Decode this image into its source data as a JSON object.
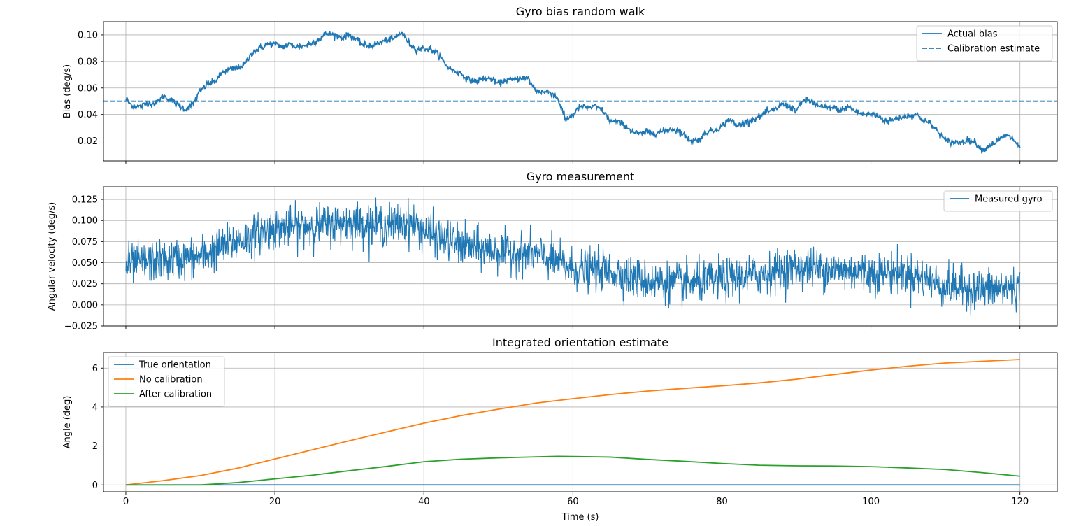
{
  "chart_data": [
    {
      "type": "line",
      "title": "Gyro bias random walk",
      "xlabel": "",
      "ylabel": "Bias (deg/s)",
      "xlim": [
        -3,
        125
      ],
      "ylim": [
        0.005,
        0.11
      ],
      "xticks": [
        0,
        20,
        40,
        60,
        80,
        100,
        120
      ],
      "yticks": [
        0.02,
        0.04,
        0.06,
        0.08,
        0.1
      ],
      "ytick_labels": [
        "0.02",
        "0.04",
        "0.06",
        "0.08",
        "0.10"
      ],
      "show_xtick_labels": false,
      "grid": true,
      "legend": "top-right",
      "series": [
        {
          "name": "Actual bias",
          "color": "#1f77b4",
          "style": "solid",
          "noise": 0.0012,
          "points": [
            [
              0,
              0.051
            ],
            [
              1,
              0.046
            ],
            [
              2,
              0.046
            ],
            [
              3,
              0.049
            ],
            [
              4,
              0.048
            ],
            [
              5,
              0.054
            ],
            [
              6,
              0.051
            ],
            [
              7,
              0.047
            ],
            [
              8,
              0.044
            ],
            [
              9,
              0.048
            ],
            [
              10,
              0.058
            ],
            [
              11,
              0.063
            ],
            [
              12,
              0.065
            ],
            [
              13,
              0.072
            ],
            [
              14,
              0.074
            ],
            [
              15,
              0.075
            ],
            [
              16,
              0.078
            ],
            [
              17,
              0.087
            ],
            [
              18,
              0.09
            ],
            [
              19,
              0.093
            ],
            [
              20,
              0.093
            ],
            [
              21,
              0.091
            ],
            [
              22,
              0.093
            ],
            [
              23,
              0.091
            ],
            [
              24,
              0.092
            ],
            [
              25,
              0.094
            ],
            [
              26,
              0.097
            ],
            [
              27,
              0.101
            ],
            [
              28,
              0.1
            ],
            [
              29,
              0.098
            ],
            [
              30,
              0.1
            ],
            [
              31,
              0.096
            ],
            [
              32,
              0.092
            ],
            [
              33,
              0.092
            ],
            [
              34,
              0.094
            ],
            [
              35,
              0.096
            ],
            [
              36,
              0.097
            ],
            [
              37,
              0.102
            ],
            [
              38,
              0.094
            ],
            [
              39,
              0.089
            ],
            [
              40,
              0.09
            ],
            [
              41,
              0.089
            ],
            [
              42,
              0.085
            ],
            [
              43,
              0.077
            ],
            [
              44,
              0.073
            ],
            [
              45,
              0.071
            ],
            [
              46,
              0.066
            ],
            [
              47,
              0.065
            ],
            [
              48,
              0.067
            ],
            [
              49,
              0.067
            ],
            [
              50,
              0.063
            ],
            [
              51,
              0.066
            ],
            [
              52,
              0.066
            ],
            [
              53,
              0.068
            ],
            [
              54,
              0.067
            ],
            [
              55,
              0.058
            ],
            [
              56,
              0.057
            ],
            [
              57,
              0.057
            ],
            [
              58,
              0.052
            ],
            [
              59,
              0.036
            ],
            [
              60,
              0.04
            ],
            [
              61,
              0.046
            ],
            [
              62,
              0.045
            ],
            [
              63,
              0.046
            ],
            [
              64,
              0.043
            ],
            [
              65,
              0.035
            ],
            [
              66,
              0.034
            ],
            [
              67,
              0.032
            ],
            [
              68,
              0.027
            ],
            [
              69,
              0.025
            ],
            [
              70,
              0.027
            ],
            [
              71,
              0.026
            ],
            [
              72,
              0.027
            ],
            [
              73,
              0.029
            ],
            [
              74,
              0.028
            ],
            [
              75,
              0.024
            ],
            [
              76,
              0.02
            ],
            [
              77,
              0.021
            ],
            [
              78,
              0.027
            ],
            [
              79,
              0.028
            ],
            [
              80,
              0.031
            ],
            [
              81,
              0.037
            ],
            [
              82,
              0.031
            ],
            [
              83,
              0.034
            ],
            [
              84,
              0.036
            ],
            [
              85,
              0.038
            ],
            [
              86,
              0.042
            ],
            [
              87,
              0.043
            ],
            [
              88,
              0.048
            ],
            [
              89,
              0.046
            ],
            [
              90,
              0.043
            ],
            [
              91,
              0.051
            ],
            [
              92,
              0.05
            ],
            [
              93,
              0.046
            ],
            [
              94,
              0.045
            ],
            [
              95,
              0.045
            ],
            [
              96,
              0.043
            ],
            [
              97,
              0.046
            ],
            [
              98,
              0.042
            ],
            [
              99,
              0.04
            ],
            [
              100,
              0.04
            ],
            [
              101,
              0.039
            ],
            [
              102,
              0.035
            ],
            [
              103,
              0.036
            ],
            [
              104,
              0.038
            ],
            [
              105,
              0.039
            ],
            [
              106,
              0.04
            ],
            [
              107,
              0.036
            ],
            [
              108,
              0.033
            ],
            [
              109,
              0.027
            ],
            [
              110,
              0.02
            ],
            [
              111,
              0.019
            ],
            [
              112,
              0.019
            ],
            [
              113,
              0.021
            ],
            [
              114,
              0.019
            ],
            [
              115,
              0.013
            ],
            [
              116,
              0.017
            ],
            [
              117,
              0.02
            ],
            [
              118,
              0.024
            ],
            [
              119,
              0.022
            ],
            [
              120,
              0.015
            ]
          ]
        },
        {
          "name": "Calibration estimate",
          "color": "#1f77b4",
          "style": "dashed",
          "points": [
            [
              -3,
              0.05
            ],
            [
              125,
              0.05
            ]
          ]
        }
      ]
    },
    {
      "type": "line",
      "title": "Gyro measurement",
      "xlabel": "",
      "ylabel": "Angular velocity (deg/s)",
      "xlim": [
        -3,
        125
      ],
      "ylim": [
        -0.025,
        0.14
      ],
      "xticks": [
        0,
        20,
        40,
        60,
        80,
        100,
        120
      ],
      "yticks": [
        -0.025,
        0.0,
        0.025,
        0.05,
        0.075,
        0.1,
        0.125
      ],
      "ytick_labels": [
        "−0.025",
        "0.000",
        "0.025",
        "0.050",
        "0.075",
        "0.100",
        "0.125"
      ],
      "show_xtick_labels": false,
      "grid": true,
      "legend": "top-right",
      "series": [
        {
          "name": "Measured gyro",
          "color": "#1f77b4",
          "style": "solid",
          "noise": 0.012,
          "points": [
            [
              0,
              0.048
            ],
            [
              5,
              0.052
            ],
            [
              10,
              0.057
            ],
            [
              15,
              0.076
            ],
            [
              20,
              0.091
            ],
            [
              25,
              0.094
            ],
            [
              30,
              0.098
            ],
            [
              35,
              0.095
            ],
            [
              38,
              0.098
            ],
            [
              40,
              0.088
            ],
            [
              45,
              0.07
            ],
            [
              50,
              0.063
            ],
            [
              55,
              0.06
            ],
            [
              58,
              0.05
            ],
            [
              60,
              0.042
            ],
            [
              65,
              0.04
            ],
            [
              70,
              0.028
            ],
            [
              75,
              0.025
            ],
            [
              80,
              0.03
            ],
            [
              85,
              0.036
            ],
            [
              90,
              0.045
            ],
            [
              95,
              0.042
            ],
            [
              100,
              0.038
            ],
            [
              105,
              0.038
            ],
            [
              110,
              0.022
            ],
            [
              115,
              0.018
            ],
            [
              120,
              0.02
            ]
          ]
        }
      ]
    },
    {
      "type": "line",
      "title": "Integrated orientation estimate",
      "xlabel": "Time (s)",
      "ylabel": "Angle (deg)",
      "xlim": [
        -3,
        125
      ],
      "ylim": [
        -0.35,
        6.8
      ],
      "xticks": [
        0,
        20,
        40,
        60,
        80,
        100,
        120
      ],
      "yticks": [
        0,
        2,
        4,
        6
      ],
      "ytick_labels": [
        "0",
        "2",
        "4",
        "6"
      ],
      "xtick_labels": [
        "0",
        "20",
        "40",
        "60",
        "80",
        "100",
        "120"
      ],
      "show_xtick_labels": true,
      "grid": true,
      "legend": "top-left",
      "series": [
        {
          "name": "True orientation",
          "color": "#1f77b4",
          "style": "solid",
          "points": [
            [
              0,
              0
            ],
            [
              120,
              0
            ]
          ]
        },
        {
          "name": "No calibration",
          "color": "#ff7f0e",
          "style": "solid",
          "points": [
            [
              0,
              0
            ],
            [
              5,
              0.22
            ],
            [
              10,
              0.48
            ],
            [
              15,
              0.86
            ],
            [
              20,
              1.33
            ],
            [
              25,
              1.8
            ],
            [
              30,
              2.27
            ],
            [
              35,
              2.72
            ],
            [
              40,
              3.17
            ],
            [
              45,
              3.56
            ],
            [
              50,
              3.89
            ],
            [
              55,
              4.2
            ],
            [
              60,
              4.43
            ],
            [
              65,
              4.64
            ],
            [
              70,
              4.82
            ],
            [
              75,
              4.96
            ],
            [
              80,
              5.09
            ],
            [
              85,
              5.24
            ],
            [
              90,
              5.43
            ],
            [
              95,
              5.67
            ],
            [
              100,
              5.9
            ],
            [
              105,
              6.1
            ],
            [
              110,
              6.26
            ],
            [
              115,
              6.35
            ],
            [
              120,
              6.44
            ]
          ]
        },
        {
          "name": "After calibration",
          "color": "#2ca02c",
          "style": "solid",
          "points": [
            [
              0,
              0
            ],
            [
              5,
              0
            ],
            [
              10,
              0
            ],
            [
              15,
              0.12
            ],
            [
              20,
              0.31
            ],
            [
              25,
              0.5
            ],
            [
              30,
              0.73
            ],
            [
              35,
              0.95
            ],
            [
              40,
              1.19
            ],
            [
              45,
              1.32
            ],
            [
              50,
              1.39
            ],
            [
              55,
              1.44
            ],
            [
              58,
              1.47
            ],
            [
              60,
              1.46
            ],
            [
              65,
              1.43
            ],
            [
              70,
              1.31
            ],
            [
              75,
              1.21
            ],
            [
              80,
              1.1
            ],
            [
              85,
              1.01
            ],
            [
              90,
              0.98
            ],
            [
              95,
              0.97
            ],
            [
              100,
              0.94
            ],
            [
              105,
              0.87
            ],
            [
              110,
              0.79
            ],
            [
              115,
              0.63
            ],
            [
              120,
              0.45
            ]
          ]
        }
      ]
    }
  ]
}
